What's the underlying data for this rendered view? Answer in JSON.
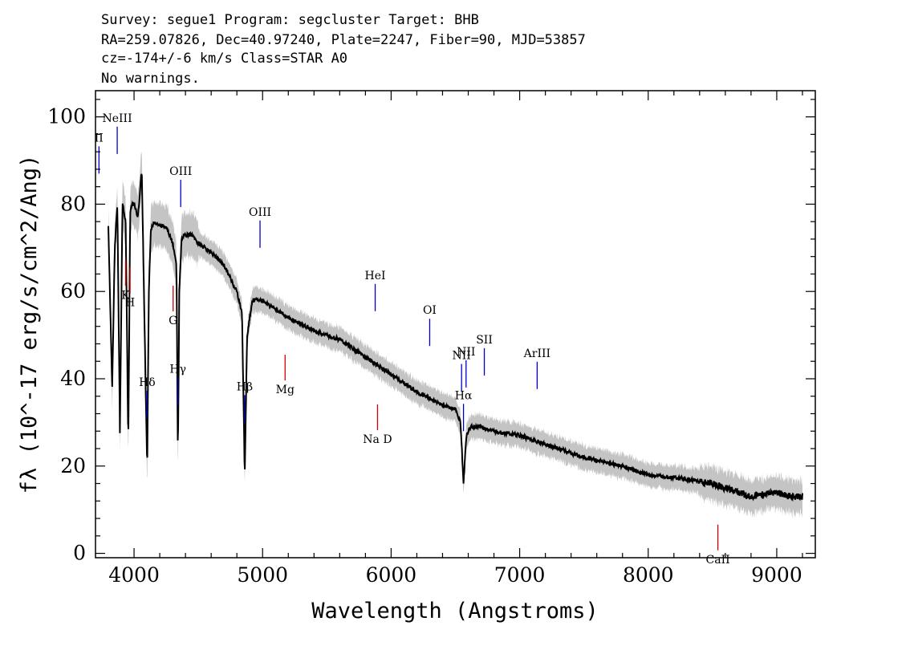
{
  "header": {
    "line1": "Survey: segue1 Program: segcluster Target: BHB",
    "line2": "RA=259.07826, Dec=40.97240, Plate=2247, Fiber=90, MJD=53857",
    "line3": "cz=-174+/-6 km/s Class=STAR A0",
    "line4": "No warnings."
  },
  "chart_data": {
    "type": "line",
    "title": "",
    "xlabel": "Wavelength (Angstroms)",
    "ylabel": "fλ (10^-17 erg/s/cm^2/Ang)",
    "xlim": [
      3700,
      9300
    ],
    "ylim": [
      -1,
      106
    ],
    "x_ticks": [
      4000,
      5000,
      6000,
      7000,
      8000,
      9000
    ],
    "y_ticks": [
      0,
      20,
      40,
      60,
      80,
      100
    ],
    "grid": false,
    "series": [
      {
        "role": "flux",
        "color": "#000000",
        "x": [
          3800,
          3830,
          3850,
          3870,
          3890,
          3910,
          3935,
          3955,
          3970,
          3985,
          4000,
          4030,
          4060,
          4080,
          4102,
          4115,
          4130,
          4160,
          4200,
          4250,
          4300,
          4330,
          4341,
          4352,
          4370,
          4400,
          4450,
          4500,
          4600,
          4700,
          4800,
          4840,
          4861,
          4880,
          4920,
          5000,
          5200,
          5400,
          5600,
          5800,
          6000,
          6200,
          6400,
          6500,
          6540,
          6563,
          6585,
          6620,
          6700,
          6800,
          7000,
          7200,
          7500,
          7800,
          8000,
          8300,
          8500,
          8600,
          8700,
          8800,
          9000,
          9100,
          9200
        ],
        "y": [
          75,
          38,
          70,
          80,
          28,
          80,
          76,
          25,
          78,
          80,
          80,
          77,
          88,
          55,
          19,
          60,
          74,
          76,
          75,
          75,
          71,
          66,
          22,
          60,
          72,
          73,
          73,
          71,
          69,
          66,
          60,
          55,
          18,
          50,
          58,
          58,
          54,
          51,
          49,
          45,
          41,
          37,
          34,
          33,
          30,
          16,
          27,
          29,
          29,
          28,
          27,
          25,
          22,
          20,
          18,
          17,
          16,
          15,
          14,
          13,
          14,
          13,
          13
        ]
      }
    ],
    "line_labels": [
      {
        "label": "II",
        "x": 3727,
        "type": "emission",
        "color": "#0000cc"
      },
      {
        "label": "NeIII",
        "x": 3869,
        "type": "emission",
        "color": "#0000cc"
      },
      {
        "label": "Hδ",
        "x": 4102,
        "type": "emission",
        "color": "#0000cc"
      },
      {
        "label": "Hγ",
        "x": 4341,
        "type": "emission",
        "color": "#0000cc"
      },
      {
        "label": "OIII",
        "x": 4363,
        "type": "emission",
        "color": "#0000cc"
      },
      {
        "label": "Hβ",
        "x": 4861,
        "type": "emission",
        "color": "#0000cc"
      },
      {
        "label": "OIII",
        "x": 4980,
        "type": "emission",
        "color": "#0000cc"
      },
      {
        "label": "HeI",
        "x": 5876,
        "type": "emission",
        "color": "#0000cc"
      },
      {
        "label": "OI",
        "x": 6300,
        "type": "emission",
        "color": "#0000cc"
      },
      {
        "label": "NII",
        "x": 6548,
        "type": "emission",
        "color": "#0000cc"
      },
      {
        "label": "Hα",
        "x": 6563,
        "type": "emission",
        "color": "#0000cc"
      },
      {
        "label": "NII",
        "x": 6583,
        "type": "emission",
        "color": "#0000cc"
      },
      {
        "label": "SII",
        "x": 6725,
        "type": "emission",
        "color": "#0000cc"
      },
      {
        "label": "ArIII",
        "x": 7136,
        "type": "emission",
        "color": "#0000cc"
      },
      {
        "label": "K",
        "x": 3934,
        "type": "absorption",
        "color": "#cc0000"
      },
      {
        "label": "H",
        "x": 3969,
        "type": "absorption",
        "color": "#cc0000"
      },
      {
        "label": "G",
        "x": 4304,
        "type": "absorption",
        "color": "#cc0000"
      },
      {
        "label": "Mg",
        "x": 5175,
        "type": "absorption",
        "color": "#cc0000"
      },
      {
        "label": "Na D",
        "x": 5894,
        "type": "absorption",
        "color": "#cc0000"
      },
      {
        "label": "CaII",
        "x": 8542,
        "type": "absorption",
        "color": "#cc0000"
      }
    ]
  }
}
